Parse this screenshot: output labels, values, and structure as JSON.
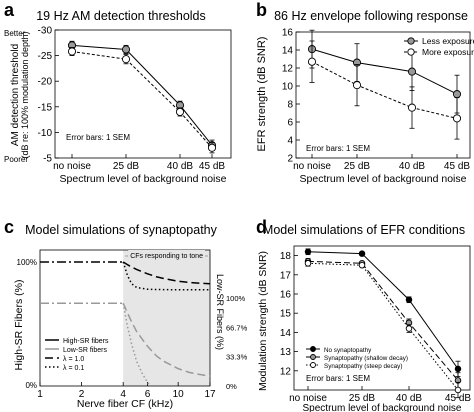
{
  "figure": {
    "background": "#ffffff"
  },
  "chart_data": [
    {
      "id": "a",
      "panel_letter": "a",
      "type": "line",
      "title": "19 Hz AM detection thresholds",
      "xlabel": "Spectrum level of background noise",
      "ylabel_lines": [
        "AM detection threshold",
        "(dB re: 100% modulation depth)"
      ],
      "categories": [
        "no noise",
        "25 dB",
        "40 dB",
        "45 dB"
      ],
      "ylim": [
        -30,
        -5
      ],
      "yticks": [
        -30,
        -25,
        -20,
        -15,
        -10,
        -5
      ],
      "ytick_labels": [
        "-30",
        "-25",
        "-20",
        "-15",
        "-10",
        "-5"
      ],
      "y_inverted": true,
      "top_annotation": "Better",
      "bottom_annotation": "Poorer",
      "note": "Error bars: 1 SEM",
      "series": [
        {
          "values": [
            -27.0,
            -26.2,
            -15.3,
            -7.5
          ],
          "errors": [
            0.8,
            0.8,
            0.8,
            1.0
          ],
          "marker_fill": "#999999",
          "dash": ""
        },
        {
          "values": [
            -25.8,
            -24.3,
            -14.0,
            -7.0
          ],
          "errors": [
            0.8,
            0.9,
            0.8,
            1.0
          ],
          "marker_fill": "#ffffff",
          "dash": "3,2"
        }
      ]
    },
    {
      "id": "b",
      "panel_letter": "b",
      "type": "line",
      "title": "86 Hz envelope following response",
      "xlabel": "Spectrum level of background noise",
      "ylabel_lines": [
        "EFR strength (dB SNR)"
      ],
      "categories": [
        "no noise",
        "25 dB",
        "40 dB",
        "45 dB"
      ],
      "ylim": [
        2,
        16
      ],
      "yticks": [
        2,
        4,
        6,
        8,
        10,
        12,
        14,
        16
      ],
      "ytick_labels": [
        "2",
        "4",
        "6",
        "8",
        "10",
        "12",
        "14",
        "16"
      ],
      "note": "Error bars: 1 SEM",
      "legend_position": "top-right",
      "series": [
        {
          "name": "Less exposure",
          "values": [
            14.1,
            12.6,
            11.6,
            9.1
          ],
          "errors": [
            2.1,
            2.1,
            2.1,
            2.1
          ],
          "marker_fill": "#999999",
          "dash": ""
        },
        {
          "name": "More exposure",
          "values": [
            12.7,
            10.1,
            7.6,
            6.4
          ],
          "errors": [
            2.3,
            2.3,
            2.3,
            2.3
          ],
          "marker_fill": "#ffffff",
          "dash": "3,2"
        }
      ]
    },
    {
      "id": "c",
      "panel_letter": "c",
      "type": "line",
      "title": "Model simulations of synaptopathy",
      "xlabel": "Nerve fiber CF (kHz)",
      "ylabel_lines": [
        "High-SR Fibers (%)"
      ],
      "y2label": "Low-SR Fibers (%)",
      "x_scale": "log",
      "xlim": [
        1,
        17
      ],
      "xticks": [
        1,
        2,
        4,
        6,
        10,
        17
      ],
      "xtick_labels": [
        "1",
        "2",
        "4",
        "6",
        "10",
        "17"
      ],
      "ytick_labels_left": [
        "100%",
        "0%"
      ],
      "ytick_labels_right": [
        "100%",
        "66.7%",
        "33.3%",
        "0%"
      ],
      "shaded_region_label": "CFs responding to tone",
      "shaded_region_x": [
        4,
        17
      ],
      "legend_position": "bottom-left",
      "series": [
        {
          "name": "High-SR fibers",
          "color": "#000000",
          "dash": "",
          "kind": "legend-only"
        },
        {
          "name": "Low-SR fibers",
          "color": "#999999",
          "dash": "",
          "kind": "legend-only"
        },
        {
          "name": "λ = 1.0",
          "color": "#000000",
          "dash": "8,4",
          "kind": "legend-only"
        },
        {
          "name": "λ = 0.1",
          "color": "#000000",
          "dash": "1.5,2.5",
          "kind": "legend-only"
        }
      ],
      "curves": [
        {
          "desc": "high-SR baseline",
          "color": "#000000",
          "dash": "9,3,2,3",
          "x": [
            1,
            4
          ],
          "y": [
            100,
            100
          ]
        },
        {
          "desc": "high-SR lambda 1.0",
          "color": "#000000",
          "dash": "8,4",
          "x": [
            4,
            4.5,
            5,
            6,
            7,
            8,
            10,
            12,
            14,
            17
          ],
          "y": [
            100,
            96.5,
            94,
            90.5,
            88,
            86.5,
            84.5,
            83.5,
            83,
            82.5
          ]
        },
        {
          "desc": "high-SR lambda 0.1",
          "color": "#000000",
          "dash": "1.5,2.5",
          "x": [
            4,
            4.3,
            4.6,
            5,
            6,
            8,
            10,
            17
          ],
          "y": [
            100,
            89,
            82.5,
            79.5,
            78,
            77.7,
            77.6,
            77.6
          ]
        },
        {
          "desc": "low-SR baseline",
          "color": "#999999",
          "dash": "9,3,2,3",
          "x": [
            1,
            4
          ],
          "y": [
            66.7,
            66.7
          ]
        },
        {
          "desc": "low-SR lambda 1.0",
          "color": "#999999",
          "dash": "8,4",
          "x": [
            4,
            4.5,
            5,
            6,
            7,
            8,
            10,
            12,
            14,
            17
          ],
          "y": [
            66.7,
            54,
            44,
            32,
            24,
            19.5,
            14,
            11,
            9.5,
            8
          ]
        },
        {
          "desc": "low-SR lambda 0.1",
          "color": "#999999",
          "dash": "1.5,2.5",
          "x": [
            4,
            4.3,
            4.6,
            5,
            5.5,
            6,
            6.3
          ],
          "y": [
            66.7,
            48,
            34,
            20,
            10,
            3,
            0
          ]
        }
      ]
    },
    {
      "id": "d",
      "panel_letter": "d",
      "type": "line",
      "title": "Model simulations of EFR conditions",
      "xlabel": "Spectrum level of background noise",
      "ylabel_lines": [
        "Modulation strength (dB SNR)"
      ],
      "categories": [
        "no noise",
        "25 dB",
        "40 dB",
        "45 dB"
      ],
      "ylim": [
        11,
        18.5
      ],
      "yticks": [
        12,
        13,
        14,
        15,
        16,
        17,
        18
      ],
      "ytick_labels": [
        "12",
        "13",
        "14",
        "15",
        "16",
        "17",
        "18"
      ],
      "note": "Error bars: 1 SEM",
      "legend_position": "bottom-left",
      "series": [
        {
          "name": "No synaptopathy",
          "values": [
            18.2,
            18.1,
            15.7,
            12.1
          ],
          "errors": [
            0.15,
            0.1,
            0.15,
            0.4
          ],
          "marker_fill": "#000000",
          "dash": ""
        },
        {
          "name": "Synaptopathy (shallow decay)",
          "values": [
            17.7,
            17.6,
            14.5,
            11.5
          ],
          "errors": [
            0.15,
            0.1,
            0.2,
            0.4
          ],
          "marker_fill": "#999999",
          "dash": "6,3"
        },
        {
          "name": "Synaptopathy (steep decay)",
          "values": [
            17.6,
            17.5,
            14.2,
            11.0
          ],
          "errors": [
            0.15,
            0.1,
            0.2,
            0.4
          ],
          "marker_fill": "#ffffff",
          "dash": "1.5,2"
        }
      ]
    }
  ]
}
